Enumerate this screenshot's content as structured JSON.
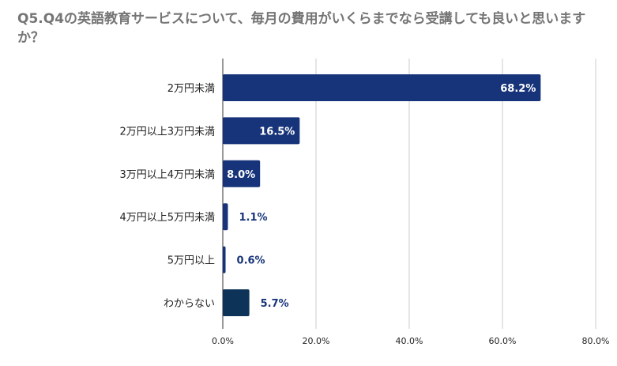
{
  "chart_data": {
    "type": "bar",
    "orientation": "horizontal",
    "title": "Q5.Q4の英語教育サービスについて、毎月の費用がいくらまでなら受講しても良いと思いますか？",
    "categories": [
      "2万円未満",
      "2万円以上3万円未満",
      "3万円以上4万円未満",
      "4万円以上5万円未満",
      "5万円以上",
      "わからない"
    ],
    "values": [
      68.2,
      16.5,
      8.0,
      1.1,
      0.6,
      5.7
    ],
    "data_labels": [
      "68.2%",
      "16.5%",
      "8.0%",
      "1.1%",
      "0.6%",
      "5.7%"
    ],
    "xlim": [
      0,
      80
    ],
    "xticks": [
      0,
      20,
      40,
      60,
      80
    ],
    "xtick_labels": [
      "0.0%",
      "20.0%",
      "40.0%",
      "60.0%",
      "80.0%"
    ],
    "grid": true,
    "colors": {
      "bar": "#17347a",
      "bar_last": "#0d3358",
      "label_inside": "#ffffff",
      "label_outside": "#17347a",
      "grid": "#cccccc",
      "title": "#757575"
    }
  }
}
